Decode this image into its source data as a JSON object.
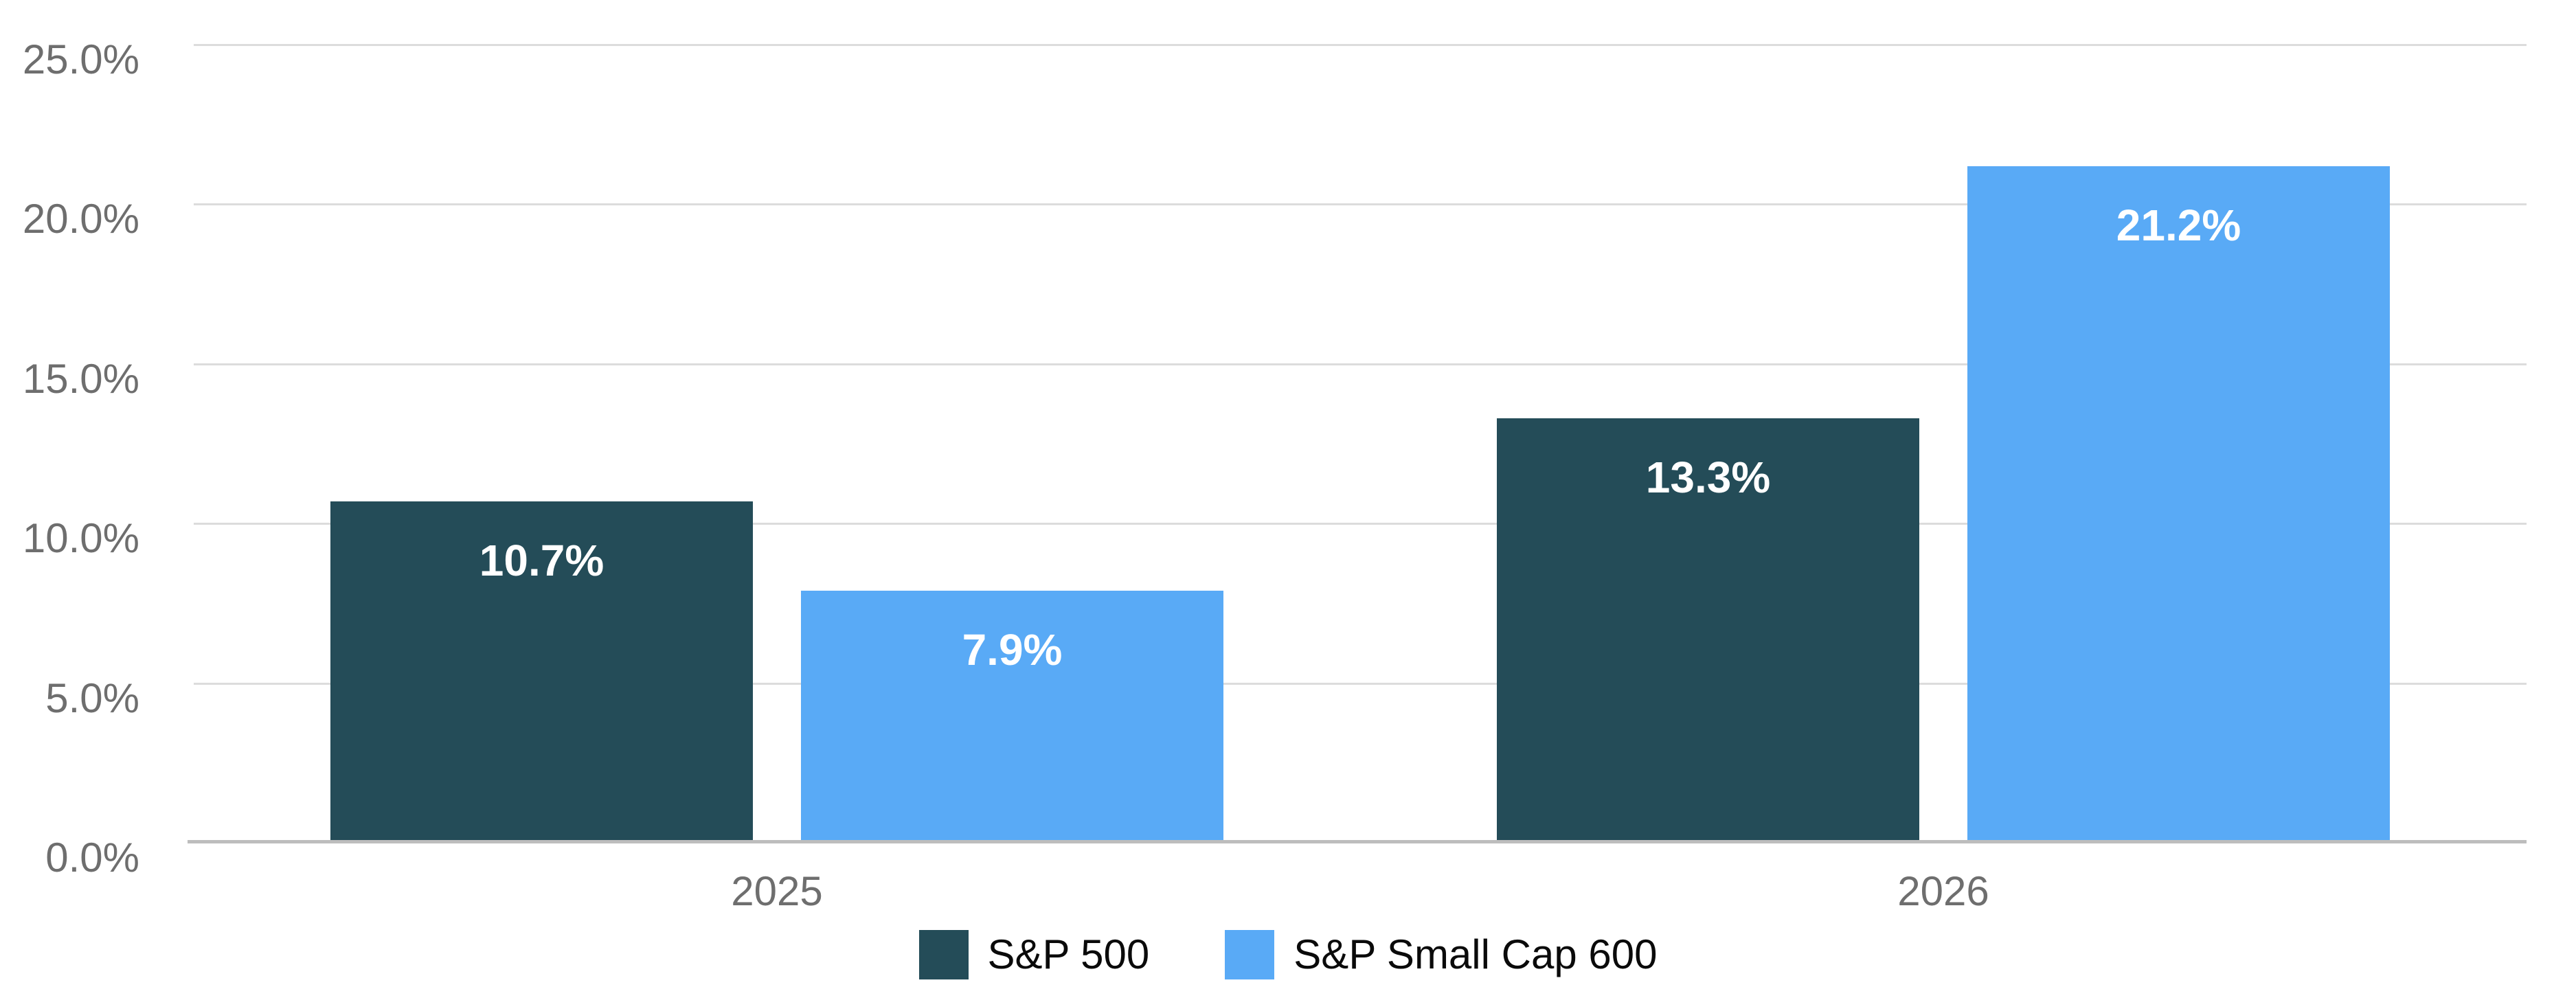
{
  "chart_data": {
    "type": "bar",
    "categories": [
      "2025",
      "2026"
    ],
    "series": [
      {
        "name": "S&P 500",
        "color": "#244C58",
        "values": [
          10.7,
          13.3
        ],
        "labels": [
          "10.7%",
          "13.3%"
        ]
      },
      {
        "name": "S&P Small Cap 600",
        "color": "#59AAF6",
        "values": [
          7.9,
          21.2
        ],
        "labels": [
          "7.9%",
          "21.2%"
        ]
      }
    ],
    "ylim": [
      0,
      25
    ],
    "yticks": [
      {
        "value": 0,
        "label": "0.0%"
      },
      {
        "value": 5,
        "label": "5.0%"
      },
      {
        "value": 10,
        "label": "10.0%"
      },
      {
        "value": 15,
        "label": "15.0%"
      },
      {
        "value": 20,
        "label": "20.0%"
      },
      {
        "value": 25,
        "label": "25.0%"
      }
    ],
    "grid": true,
    "legend_position": "bottom",
    "bar_label_position": "inside-top"
  },
  "style": {
    "background": "#ffffff",
    "grid_color": "#dcdcdc",
    "axis_line_color": "#bdbdbd",
    "tick_label_color": "#6e6e6e",
    "bar_label_color": "#ffffff",
    "legend_text_color": "#0a0a0a"
  }
}
